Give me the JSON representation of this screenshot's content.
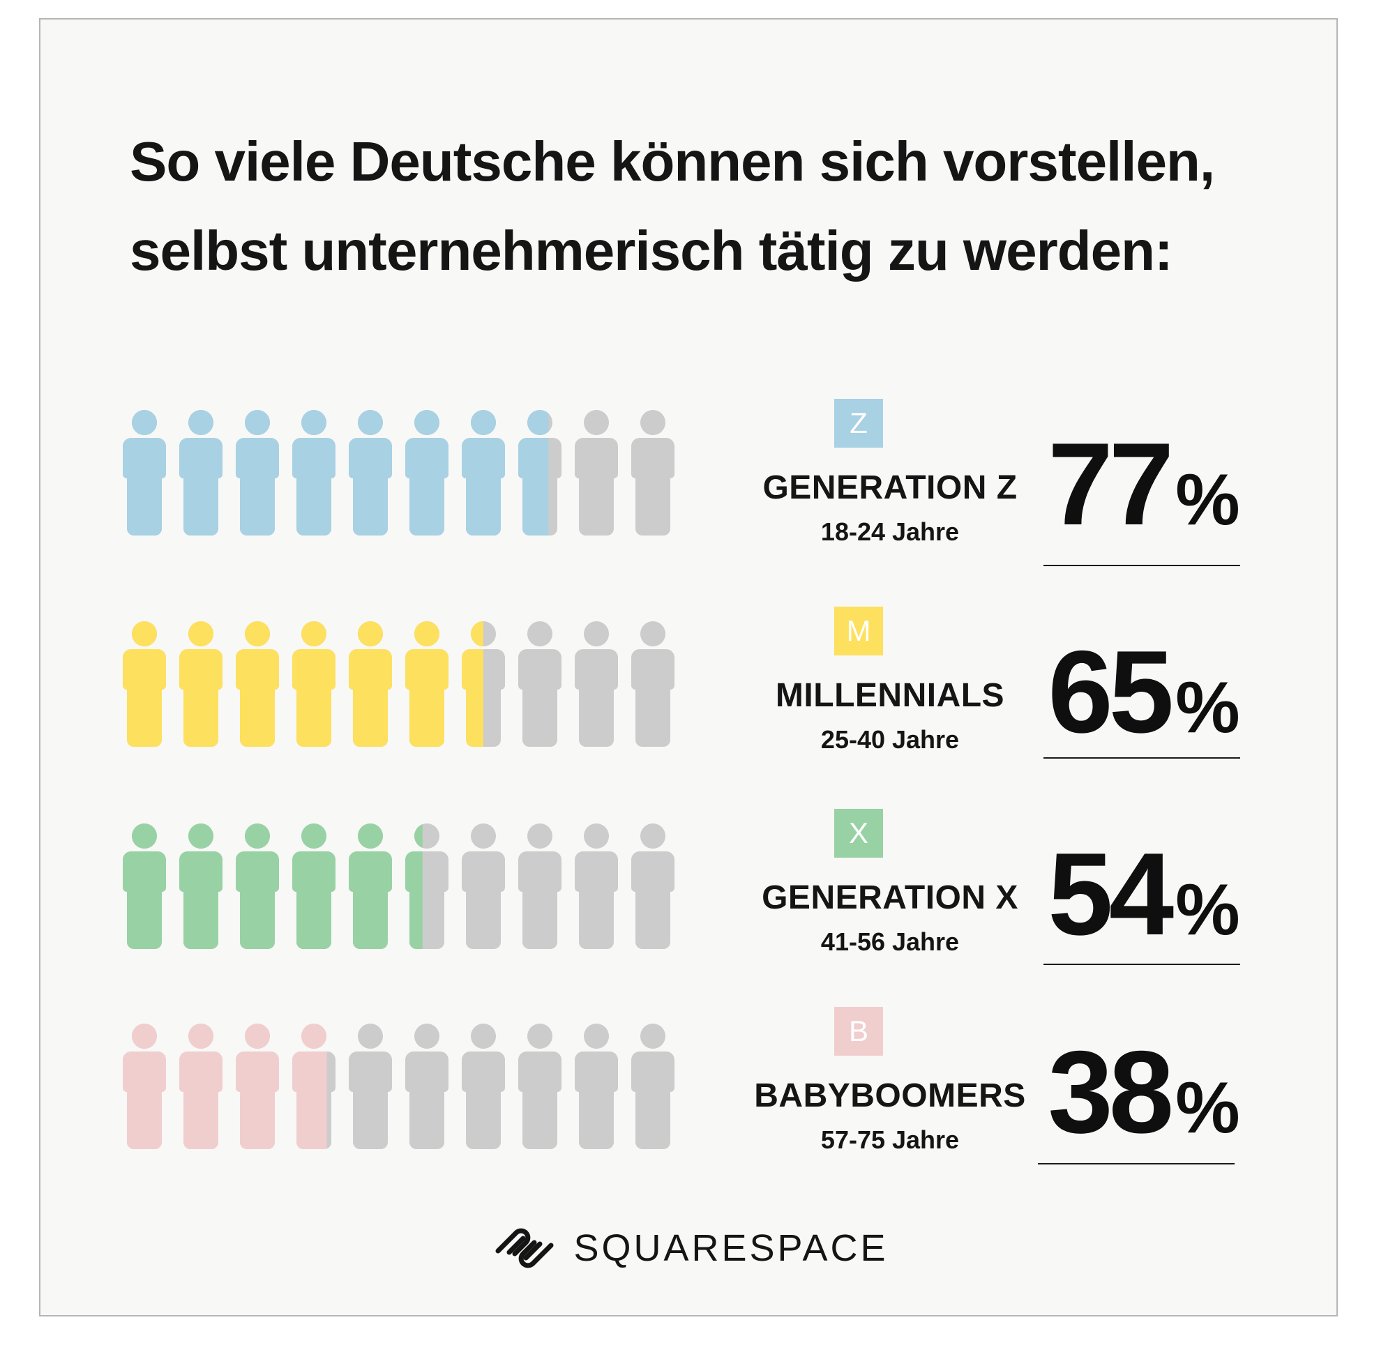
{
  "title_line1": "So viele Deutsche können sich vorstellen,",
  "title_line2": "selbst unternehmerisch tätig zu werden:",
  "brand": {
    "name": "SQUARESPACE",
    "logo_icon": "squarespace-logo-icon"
  },
  "colors": {
    "inactive": "#cccccc"
  },
  "chart_data": {
    "type": "pictogram",
    "icons_per_row": 10,
    "unit": "%",
    "groups": [
      {
        "letter": "Z",
        "name": "GENERATION Z",
        "age": "18-24 Jahre",
        "value": 77,
        "color": "#a8d1e3"
      },
      {
        "letter": "M",
        "name": "MILLENNIALS",
        "age": "25-40 Jahre",
        "value": 65,
        "color": "#fde05e"
      },
      {
        "letter": "X",
        "name": "GENERATION X",
        "age": "41-56 Jahre",
        "value": 54,
        "color": "#98d2a4"
      },
      {
        "letter": "B",
        "name": "BABYBOOMERS",
        "age": "57-75 Jahre",
        "value": 38,
        "color": "#f1cece"
      }
    ]
  }
}
